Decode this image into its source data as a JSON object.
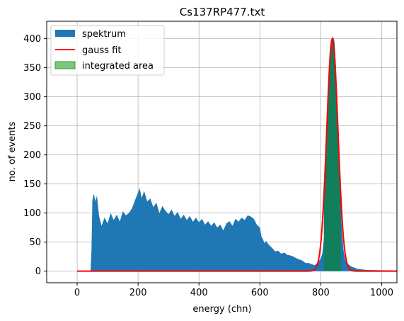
{
  "chart_data": {
    "type": "histogram",
    "title": "Cs137RP477.txt",
    "xlabel": "energy (chn)",
    "ylabel": "no. of events",
    "xlim": [
      -100,
      1050
    ],
    "ylim": [
      -20,
      430
    ],
    "xticks": [
      0,
      200,
      400,
      600,
      800,
      1000
    ],
    "yticks": [
      0,
      50,
      100,
      150,
      200,
      250,
      300,
      350,
      400
    ],
    "grid": true,
    "legend_position": "upper-left",
    "colors": {
      "spektrum": "#1f77b4",
      "gauss": "#ff0000",
      "area": "#2ca02c",
      "overlap": "#117f5c"
    },
    "series": [
      {
        "name": "spektrum",
        "kind": "filled-histogram",
        "points": [
          [
            0,
            0
          ],
          [
            44,
            0
          ],
          [
            47,
            35
          ],
          [
            50,
            122
          ],
          [
            55,
            133
          ],
          [
            60,
            120
          ],
          [
            65,
            130
          ],
          [
            72,
            95
          ],
          [
            80,
            78
          ],
          [
            90,
            92
          ],
          [
            100,
            82
          ],
          [
            110,
            100
          ],
          [
            120,
            88
          ],
          [
            130,
            97
          ],
          [
            140,
            85
          ],
          [
            150,
            103
          ],
          [
            160,
            96
          ],
          [
            170,
            100
          ],
          [
            180,
            108
          ],
          [
            190,
            122
          ],
          [
            200,
            135
          ],
          [
            205,
            143
          ],
          [
            212,
            126
          ],
          [
            220,
            138
          ],
          [
            230,
            120
          ],
          [
            240,
            125
          ],
          [
            250,
            110
          ],
          [
            260,
            118
          ],
          [
            270,
            100
          ],
          [
            280,
            112
          ],
          [
            290,
            104
          ],
          [
            300,
            98
          ],
          [
            310,
            106
          ],
          [
            320,
            95
          ],
          [
            330,
            102
          ],
          [
            340,
            90
          ],
          [
            350,
            97
          ],
          [
            360,
            88
          ],
          [
            370,
            95
          ],
          [
            380,
            85
          ],
          [
            390,
            92
          ],
          [
            400,
            84
          ],
          [
            410,
            90
          ],
          [
            420,
            80
          ],
          [
            430,
            86
          ],
          [
            440,
            78
          ],
          [
            450,
            84
          ],
          [
            460,
            75
          ],
          [
            470,
            80
          ],
          [
            480,
            70
          ],
          [
            490,
            82
          ],
          [
            500,
            86
          ],
          [
            510,
            78
          ],
          [
            520,
            90
          ],
          [
            530,
            85
          ],
          [
            540,
            92
          ],
          [
            550,
            88
          ],
          [
            560,
            96
          ],
          [
            570,
            94
          ],
          [
            580,
            90
          ],
          [
            590,
            80
          ],
          [
            600,
            75
          ],
          [
            605,
            60
          ],
          [
            610,
            55
          ],
          [
            615,
            48
          ],
          [
            620,
            52
          ],
          [
            630,
            45
          ],
          [
            640,
            40
          ],
          [
            650,
            34
          ],
          [
            660,
            35
          ],
          [
            670,
            30
          ],
          [
            680,
            32
          ],
          [
            690,
            28
          ],
          [
            700,
            27
          ],
          [
            710,
            25
          ],
          [
            720,
            22
          ],
          [
            730,
            20
          ],
          [
            740,
            18
          ],
          [
            750,
            14
          ],
          [
            760,
            14
          ],
          [
            770,
            12
          ],
          [
            780,
            10
          ],
          [
            790,
            15
          ],
          [
            800,
            22
          ],
          [
            805,
            30
          ],
          [
            810,
            55
          ],
          [
            815,
            95
          ],
          [
            820,
            160
          ],
          [
            825,
            240
          ],
          [
            830,
            320
          ],
          [
            835,
            382
          ],
          [
            840,
            405
          ],
          [
            845,
            395
          ],
          [
            850,
            350
          ],
          [
            855,
            270
          ],
          [
            860,
            190
          ],
          [
            865,
            120
          ],
          [
            870,
            65
          ],
          [
            875,
            35
          ],
          [
            880,
            20
          ],
          [
            890,
            12
          ],
          [
            900,
            8
          ],
          [
            920,
            4
          ],
          [
            950,
            2
          ],
          [
            1050,
            1
          ]
        ]
      },
      {
        "name": "gauss fit",
        "kind": "line",
        "mu": 838,
        "sigma": 18.5,
        "amplitude": 400,
        "x_range": [
          0,
          1050
        ]
      },
      {
        "name": "integrated area",
        "kind": "filled-region",
        "x_range": [
          810,
          866
        ]
      }
    ]
  }
}
